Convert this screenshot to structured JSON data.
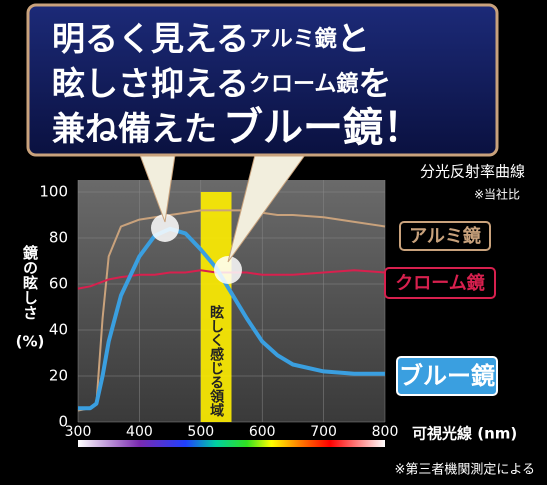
{
  "headline": [
    [
      "明るく見える",
      "アルミ鏡",
      "と"
    ],
    [
      "眩しさ抑える",
      "クローム鏡",
      "を"
    ],
    [
      "兼ね備えた",
      "ブルー鏡",
      "！"
    ]
  ],
  "chart_data": {
    "type": "line",
    "title": "分光反射率曲線",
    "note": "※当社比",
    "ylabel": [
      "鏡の眩しさ",
      "(%)"
    ],
    "xlabel": "可視光線 (nm)",
    "x": [
      300,
      320,
      330,
      340,
      350,
      370,
      400,
      425,
      450,
      475,
      500,
      525,
      550,
      575,
      600,
      625,
      650,
      700,
      750,
      800
    ],
    "series": [
      {
        "name": "アルミ鏡",
        "color": "#c9a27c",
        "values": [
          5,
          6,
          8,
          45,
          72,
          85,
          88,
          89,
          90,
          91,
          92,
          92,
          92,
          92,
          91,
          90,
          90,
          89,
          87,
          85
        ]
      },
      {
        "name": "クローム鏡",
        "color": "#d8204e",
        "values": [
          58,
          59,
          60,
          61,
          62,
          63,
          64,
          64,
          65,
          65,
          66,
          65,
          65,
          65,
          64,
          64,
          64,
          65,
          66,
          65
        ]
      },
      {
        "name": "ブルー鏡",
        "color": "#3a9fe0",
        "values": [
          6,
          6,
          8,
          20,
          35,
          55,
          72,
          81,
          84,
          82,
          75,
          67,
          56,
          45,
          35,
          29,
          25,
          22,
          21,
          21
        ]
      }
    ],
    "band": {
      "from": 500,
      "to": 550,
      "label": "眩しく感じる領域",
      "color": "#ffee00"
    },
    "xlim": [
      300,
      800
    ],
    "xticks": [
      300,
      400,
      500,
      600,
      700,
      800
    ],
    "ylim": [
      0,
      100
    ],
    "yticks": [
      0,
      20,
      40,
      60,
      80,
      100
    ],
    "grid": true,
    "footnote": "※第三者機関測定による"
  }
}
